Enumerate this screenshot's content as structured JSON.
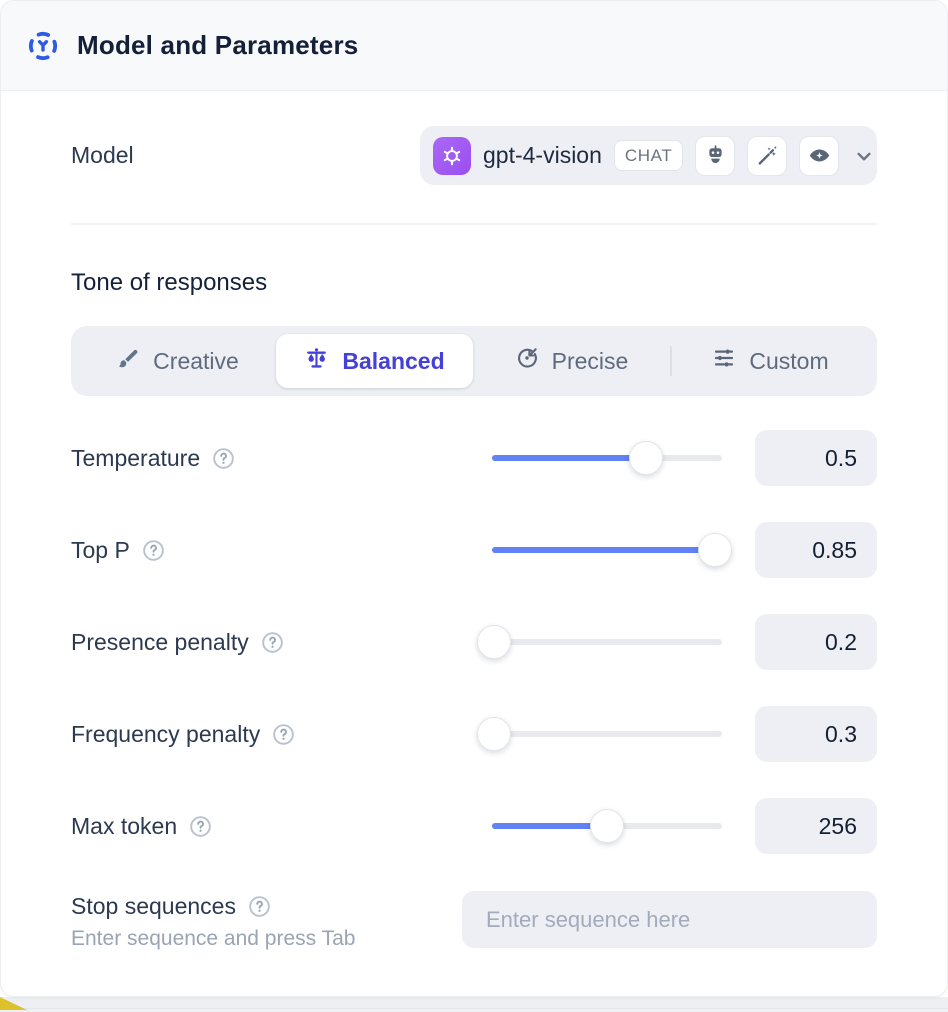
{
  "header": {
    "title": "Model and Parameters",
    "icon": "dashed-circle-model-icon",
    "background": "#f8f9fb",
    "icon_color": "#2d5be3"
  },
  "model_row": {
    "label": "Model",
    "selected_model": "gpt-4-vision",
    "type_badge": "CHAT",
    "provider_logo": "openai-logo",
    "logo_color": "#a15df2",
    "capability_icons": [
      "robot-icon",
      "magic-wand-icon",
      "vision-eye-icon"
    ],
    "chevron": "chevron-down-icon"
  },
  "tone": {
    "heading": "Tone of responses",
    "tabs": [
      {
        "label": "Creative",
        "icon": "paintbrush-icon",
        "active": false
      },
      {
        "label": "Balanced",
        "icon": "balance-scale-icon",
        "active": true
      },
      {
        "label": "Precise",
        "icon": "target-arrow-icon",
        "active": false
      },
      {
        "label": "Custom",
        "icon": "sliders-icon",
        "active": false
      }
    ],
    "active_color": "#4440d8"
  },
  "parameters": [
    {
      "label": "Temperature",
      "value": "0.5",
      "fill_percent": 67
    },
    {
      "label": "Top P",
      "value": "0.85",
      "fill_percent": 97
    },
    {
      "label": "Presence penalty",
      "value": "0.2",
      "fill_percent": 1
    },
    {
      "label": "Frequency penalty",
      "value": "0.3",
      "fill_percent": 1
    },
    {
      "label": "Max token",
      "value": "256",
      "fill_percent": 50
    }
  ],
  "stop_sequences": {
    "label": "Stop sequences",
    "helper": "Enter sequence and press Tab",
    "placeholder": "Enter sequence here"
  },
  "colors": {
    "slider_fill": "#6181f6",
    "control_background": "#edeff4",
    "active_indigo": "#4440d8",
    "accent_yellow": "#dcc12d"
  }
}
